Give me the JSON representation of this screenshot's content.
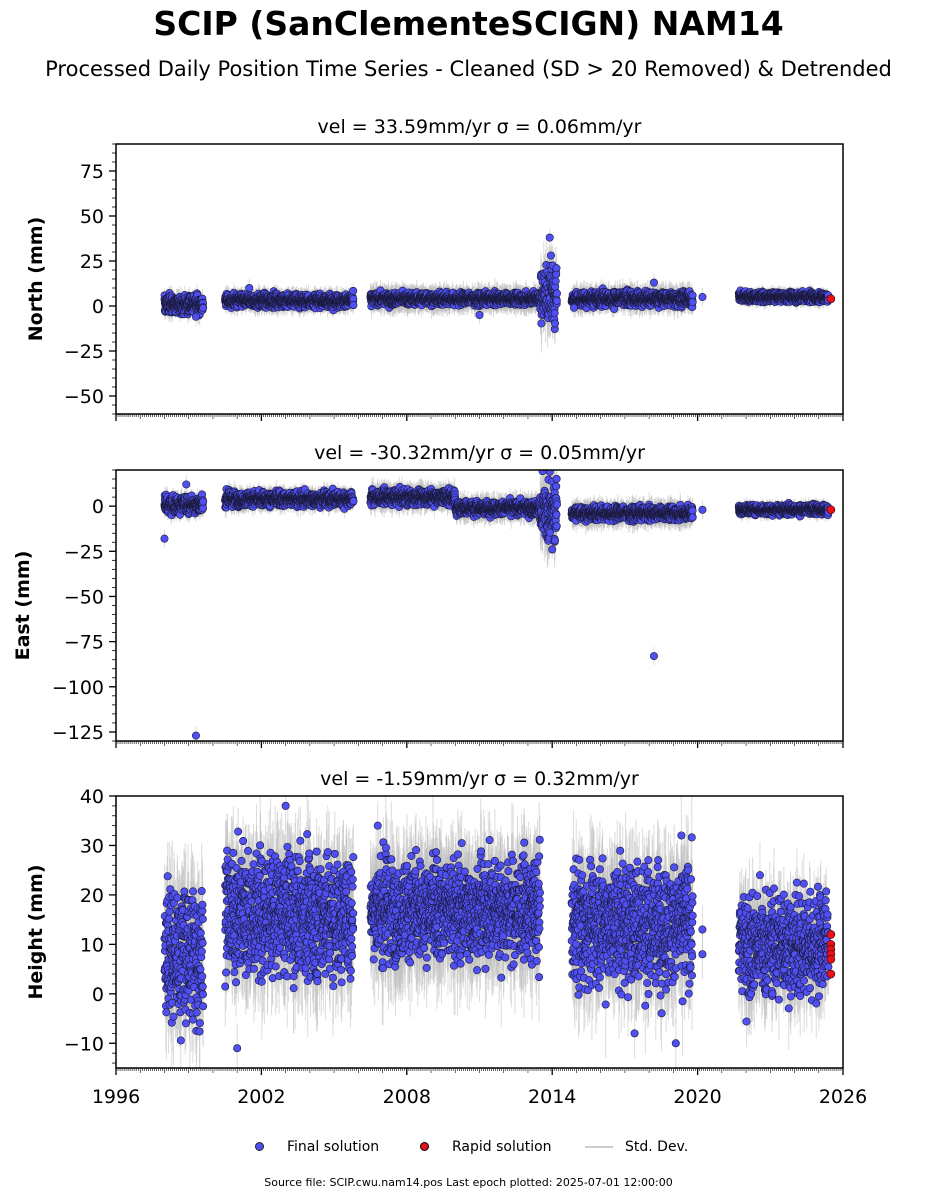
{
  "title": "SCIP (SanClementeSCIGN) NAM14",
  "subtitle": "Processed Daily Position Time Series - Cleaned (SD > 20 Removed) & Detrended",
  "legend": {
    "final": "Final solution",
    "rapid": "Rapid solution",
    "std": "Std. Dev."
  },
  "source_note": "Source file: SCIP.cwu.nam14.pos  Last epoch plotted: 2025-07-01 12:00:00",
  "colors": {
    "final": "#4f4ff2",
    "rapid": "#e8111a",
    "std": "#bfbfbf",
    "edge": "#1a1a3a"
  },
  "chart_data": [
    {
      "type": "scatter",
      "title": "vel = 33.59mm/yr   σ = 0.06mm/yr",
      "ylabel": "North (mm)",
      "xlim": [
        1996,
        2026
      ],
      "ylim": [
        -60,
        90
      ],
      "yticks": [
        -50,
        -25,
        0,
        25,
        50,
        75
      ],
      "yticklabels": [
        "−50",
        "−25",
        "0",
        "25",
        "50",
        "75"
      ],
      "xticks": [
        1996,
        2002,
        2008,
        2014,
        2020,
        2026
      ],
      "segments": [
        {
          "start": 1998.0,
          "end": 1999.6,
          "mean": 1,
          "sd": 2.5,
          "err": 4
        },
        {
          "start": 2000.5,
          "end": 2005.8,
          "mean": 3,
          "sd": 1.8,
          "err": 4
        },
        {
          "start": 2006.5,
          "end": 2013.5,
          "mean": 4,
          "sd": 1.6,
          "err": 5
        },
        {
          "start": 2013.5,
          "end": 2014.2,
          "mean": 6,
          "sd": 8,
          "err": 12
        },
        {
          "start": 2014.8,
          "end": 2019.8,
          "mean": 4,
          "sd": 2,
          "err": 5
        },
        {
          "start": 2021.7,
          "end": 2025.4,
          "mean": 5,
          "sd": 1.3,
          "err": 3
        }
      ],
      "outliers": [
        {
          "x": 1999.3,
          "y": -6
        },
        {
          "x": 2001.5,
          "y": 10
        },
        {
          "x": 2011.0,
          "y": -5
        },
        {
          "x": 2013.9,
          "y": 38
        },
        {
          "x": 2013.95,
          "y": 28
        },
        {
          "x": 2014.9,
          "y": -1
        },
        {
          "x": 2018.2,
          "y": 13
        },
        {
          "x": 2020.2,
          "y": 5
        }
      ],
      "rapid": [
        {
          "x": 2025.5,
          "y": 4
        }
      ]
    },
    {
      "type": "scatter",
      "title": "vel = -30.32mm/yr   σ = 0.05mm/yr",
      "ylabel": "East (mm)",
      "xlim": [
        1996,
        2026
      ],
      "ylim": [
        -130,
        20
      ],
      "yticks": [
        -125,
        -100,
        -75,
        -50,
        -25,
        0
      ],
      "yticklabels": [
        "−125",
        "−100",
        "−75",
        "−50",
        "−25",
        "0"
      ],
      "xticks": [
        1996,
        2002,
        2008,
        2014,
        2020,
        2026
      ],
      "segments": [
        {
          "start": 1998.0,
          "end": 1999.6,
          "mean": 1,
          "sd": 2.5,
          "err": 4
        },
        {
          "start": 2000.5,
          "end": 2005.8,
          "mean": 4,
          "sd": 2,
          "err": 4
        },
        {
          "start": 2006.5,
          "end": 2010.0,
          "mean": 5,
          "sd": 2,
          "err": 5
        },
        {
          "start": 2010.0,
          "end": 2013.5,
          "mean": -1,
          "sd": 1.8,
          "err": 5
        },
        {
          "start": 2013.5,
          "end": 2014.2,
          "mean": -3,
          "sd": 8,
          "err": 12
        },
        {
          "start": 2014.8,
          "end": 2019.8,
          "mean": -4,
          "sd": 1.8,
          "err": 5
        },
        {
          "start": 2021.7,
          "end": 2025.4,
          "mean": -2,
          "sd": 1.3,
          "err": 3
        }
      ],
      "outliers": [
        {
          "x": 1998.0,
          "y": -18
        },
        {
          "x": 1998.9,
          "y": 12
        },
        {
          "x": 1999.3,
          "y": -127
        },
        {
          "x": 2013.9,
          "y": 19
        },
        {
          "x": 2014.0,
          "y": -24
        },
        {
          "x": 2018.2,
          "y": -83
        },
        {
          "x": 2020.2,
          "y": -2
        }
      ],
      "rapid": [
        {
          "x": 2025.5,
          "y": -2
        }
      ]
    },
    {
      "type": "scatter",
      "title": "vel = -1.59mm/yr   σ = 0.32mm/yr",
      "ylabel": "Height (mm)",
      "xlabel": "",
      "xlim": [
        1996,
        2026
      ],
      "ylim": [
        -15,
        40
      ],
      "yticks": [
        -10,
        0,
        10,
        20,
        30,
        40
      ],
      "yticklabels": [
        "−10",
        "0",
        "10",
        "20",
        "30",
        "40"
      ],
      "xticks": [
        1996,
        2002,
        2008,
        2014,
        2020,
        2026
      ],
      "xticklabels": [
        "1996",
        "2002",
        "2008",
        "2014",
        "2020",
        "2026"
      ],
      "segments": [
        {
          "start": 1998.0,
          "end": 1999.6,
          "mean": 8,
          "sd": 7,
          "err": 8
        },
        {
          "start": 2000.5,
          "end": 2005.8,
          "mean": 16,
          "sd": 6,
          "err": 8
        },
        {
          "start": 2006.5,
          "end": 2013.5,
          "mean": 17,
          "sd": 5,
          "err": 8
        },
        {
          "start": 2014.8,
          "end": 2019.8,
          "mean": 14,
          "sd": 6,
          "err": 8
        },
        {
          "start": 2021.7,
          "end": 2025.4,
          "mean": 10,
          "sd": 5,
          "err": 6
        }
      ],
      "outliers": [
        {
          "x": 2001.0,
          "y": -11
        },
        {
          "x": 2003.0,
          "y": 38
        },
        {
          "x": 2006.8,
          "y": 34
        },
        {
          "x": 2017.4,
          "y": -8
        },
        {
          "x": 2019.1,
          "y": -10
        },
        {
          "x": 2020.2,
          "y": 13
        },
        {
          "x": 2020.2,
          "y": 8
        }
      ],
      "rapid": [
        {
          "x": 2025.5,
          "y": 12
        },
        {
          "x": 2025.5,
          "y": 10
        },
        {
          "x": 2025.5,
          "y": 9
        },
        {
          "x": 2025.5,
          "y": 8
        },
        {
          "x": 2025.5,
          "y": 7
        },
        {
          "x": 2025.5,
          "y": 4
        }
      ]
    }
  ]
}
